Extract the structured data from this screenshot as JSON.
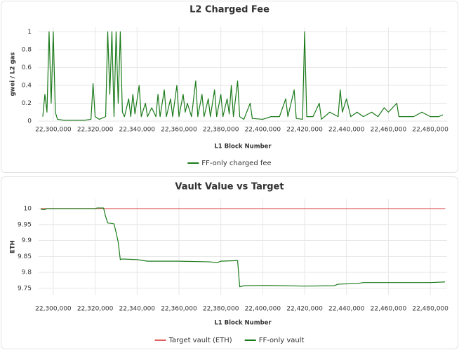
{
  "chart_data": [
    {
      "type": "line",
      "title": "L2 Charged Fee",
      "xlabel": "L1 Block Number",
      "ylabel": "gwei / L2 gas",
      "grid": true,
      "xlim": [
        22293000,
        22488000
      ],
      "ylim": [
        0,
        1.05
      ],
      "xticks": [
        {
          "value": 22300000,
          "label": "22,300,000"
        },
        {
          "value": 22320000,
          "label": "22,320,000"
        },
        {
          "value": 22340000,
          "label": "22,340,000"
        },
        {
          "value": 22360000,
          "label": "22,360,000"
        },
        {
          "value": 22380000,
          "label": "22,380,000"
        },
        {
          "value": 22400000,
          "label": "22,400,000"
        },
        {
          "value": 22420000,
          "label": "22,420,000"
        },
        {
          "value": 22440000,
          "label": "22,440,000"
        },
        {
          "value": 22460000,
          "label": "22,460,000"
        },
        {
          "value": 22480000,
          "label": "22,480,000"
        }
      ],
      "yticks": [
        0,
        0.2,
        0.4,
        0.6,
        0.8,
        1
      ],
      "series": [
        {
          "name": "FF-only charged fee",
          "color": "#1a7a1a",
          "x": [
            22295000,
            22296000,
            22297000,
            22298000,
            22299000,
            22300000,
            22301000,
            22302000,
            22305000,
            22315000,
            22318000,
            22319000,
            22320000,
            22322000,
            22325000,
            22326000,
            22327000,
            22328000,
            22329000,
            22330000,
            22331000,
            22332000,
            22333000,
            22334000,
            22336000,
            22337000,
            22338000,
            22339000,
            22341000,
            22342000,
            22344000,
            22345000,
            22347000,
            22349000,
            22350000,
            22351000,
            22353000,
            22354000,
            22356000,
            22357000,
            22359000,
            22360000,
            22362000,
            22363000,
            22364000,
            22366000,
            22368000,
            22369000,
            22371000,
            22372000,
            22374000,
            22375000,
            22377000,
            22378000,
            22380000,
            22381000,
            22383000,
            22384000,
            22385000,
            22386000,
            22388000,
            22389000,
            22391000,
            22394000,
            22395000,
            22400000,
            22404000,
            22408000,
            22411000,
            22412000,
            22415000,
            22416000,
            22419000,
            22420000,
            22421000,
            22424000,
            22427000,
            22428000,
            22432000,
            22436000,
            22437000,
            22438000,
            22440000,
            22442000,
            22445000,
            22448000,
            22452000,
            22455000,
            22458000,
            22460000,
            22462000,
            22464000,
            22465000,
            22468000,
            22472000,
            22476000,
            22480000,
            22484000,
            22486000
          ],
          "values": [
            0.05,
            0.3,
            0.1,
            1,
            0.2,
            1,
            0.1,
            0.02,
            0.01,
            0.01,
            0.02,
            0.42,
            0.05,
            0.02,
            0.05,
            1,
            0.3,
            1,
            0.05,
            1,
            0.2,
            1,
            0.1,
            0.05,
            0.25,
            0.05,
            0.3,
            0.08,
            0.4,
            0.05,
            0.2,
            0.05,
            0.15,
            0.05,
            0.3,
            0.05,
            0.35,
            0.05,
            0.25,
            0.05,
            0.4,
            0.05,
            0.3,
            0.1,
            0.2,
            0.05,
            0.45,
            0.05,
            0.3,
            0.05,
            0.25,
            0.05,
            0.35,
            0.05,
            0.3,
            0.05,
            0.25,
            0.08,
            0.4,
            0.05,
            0.45,
            0.05,
            0.02,
            0.2,
            0.03,
            0.02,
            0.05,
            0.05,
            0.25,
            0.05,
            0.35,
            0.03,
            0.02,
            1,
            0.05,
            0.05,
            0.2,
            0.02,
            0.1,
            0.05,
            0.35,
            0.1,
            0.25,
            0.05,
            0.1,
            0.05,
            0.1,
            0.05,
            0.15,
            0.1,
            0.15,
            0.2,
            0.05,
            0.05,
            0.05,
            0.1,
            0.05,
            0.05,
            0.07
          ]
        }
      ]
    },
    {
      "type": "line",
      "title": "Vault Value vs Target",
      "xlabel": "L1 Block Number",
      "ylabel": "ETH",
      "grid": true,
      "xlim": [
        22293000,
        22488000
      ],
      "ylim": [
        9.73,
        10.03
      ],
      "xticks": [
        {
          "value": 22300000,
          "label": "22,300,000"
        },
        {
          "value": 22320000,
          "label": "22,320,000"
        },
        {
          "value": 22340000,
          "label": "22,340,000"
        },
        {
          "value": 22360000,
          "label": "22,360,000"
        },
        {
          "value": 22380000,
          "label": "22,380,000"
        },
        {
          "value": 22400000,
          "label": "22,400,000"
        },
        {
          "value": 22420000,
          "label": "22,420,000"
        },
        {
          "value": 22440000,
          "label": "22,440,000"
        },
        {
          "value": 22460000,
          "label": "22,460,000"
        },
        {
          "value": 22480000,
          "label": "22,480,000"
        }
      ],
      "yticks": [
        9.75,
        9.8,
        9.85,
        9.9,
        9.95,
        10
      ],
      "series": [
        {
          "name": "Target vault (ETH)",
          "color": "#e06060",
          "x": [
            22294000,
            22487000
          ],
          "values": [
            10,
            10
          ]
        },
        {
          "name": "FF-only vault",
          "color": "#1a7a1a",
          "x": [
            22294000,
            22296000,
            22297000,
            22320000,
            22321000,
            22324000,
            22325000,
            22326000,
            22329000,
            22330000,
            22331000,
            22332000,
            22333000,
            22340000,
            22345000,
            22360000,
            22375000,
            22378000,
            22380000,
            22388000,
            22389000,
            22391000,
            22400000,
            22420000,
            22434000,
            22436000,
            22445000,
            22448000,
            22480000,
            22487000
          ],
          "values": [
            9.998,
            9.997,
            10.0,
            10.0,
            10.002,
            10.002,
            9.975,
            9.955,
            9.952,
            9.925,
            9.895,
            9.84,
            9.842,
            9.84,
            9.835,
            9.835,
            9.833,
            9.83,
            9.835,
            9.837,
            9.755,
            9.758,
            9.759,
            9.757,
            9.758,
            9.763,
            9.765,
            9.768,
            9.768,
            9.77
          ]
        }
      ]
    }
  ]
}
